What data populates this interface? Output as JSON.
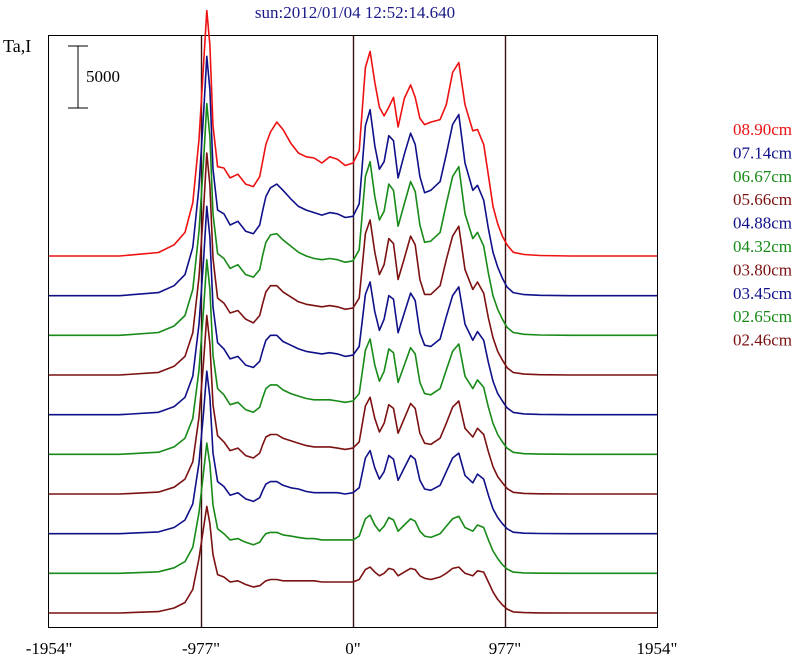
{
  "title": "sun:2012/01/04 12:52:14.640",
  "ylabel": "Ta,I",
  "scale_bar_label": "5000",
  "chart_data": {
    "type": "line",
    "title": "sun:2012/01/04 12:52:14.640",
    "ylabel": "Ta,I",
    "xlabel": "",
    "xlim": [
      -1954,
      1954
    ],
    "x_ticks": [
      -1954,
      -977,
      0,
      977,
      1954
    ],
    "x_tick_labels": [
      "-1954\"",
      "-977\"",
      "0\"",
      "977\"",
      "1954\""
    ],
    "vertical_lines": [
      -977,
      0,
      977
    ],
    "scale_bar_value": 5000,
    "grid": false,
    "legend_position": "right",
    "x": [
      -1954,
      -1500,
      -1250,
      -1150,
      -1080,
      -1030,
      -990,
      -960,
      -940,
      -920,
      -900,
      -870,
      -830,
      -790,
      -740,
      -690,
      -640,
      -600,
      -580,
      -560,
      -530,
      -490,
      -450,
      -400,
      -350,
      -300,
      -250,
      -200,
      -150,
      -100,
      -50,
      0,
      40,
      80,
      110,
      140,
      170,
      200,
      230,
      260,
      290,
      330,
      370,
      400,
      430,
      460,
      500,
      560,
      600,
      640,
      680,
      720,
      770,
      800,
      840,
      870,
      900,
      930,
      960,
      990,
      1030,
      1100,
      1200,
      1400,
      1954
    ],
    "series": [
      {
        "name": "08.90cm",
        "color": "#ee1111",
        "values": [
          0,
          0,
          280,
          900,
          1900,
          4300,
          9400,
          15500,
          19800,
          17000,
          10500,
          7200,
          7100,
          6300,
          6600,
          5800,
          5600,
          6400,
          7700,
          9000,
          10000,
          10800,
          10200,
          9100,
          8300,
          8000,
          7900,
          7500,
          8000,
          7800,
          7300,
          7500,
          8500,
          15200,
          16500,
          14000,
          12000,
          11300,
          12000,
          12800,
          10400,
          12700,
          13800,
          12800,
          11100,
          10600,
          10800,
          11000,
          12200,
          14800,
          15600,
          12200,
          10100,
          10200,
          9000,
          6500,
          4000,
          2600,
          1600,
          900,
          300,
          120,
          40,
          0,
          0
        ]
      },
      {
        "name": "07.14cm",
        "color": "#101089",
        "values": [
          0,
          0,
          250,
          800,
          1700,
          3900,
          8800,
          14700,
          19300,
          16600,
          10200,
          6900,
          6600,
          5700,
          6000,
          5200,
          5000,
          5700,
          6900,
          8000,
          8700,
          9000,
          8500,
          7800,
          7200,
          6900,
          6700,
          6500,
          6700,
          6600,
          6300,
          6400,
          7400,
          13700,
          15000,
          12100,
          10200,
          10800,
          12900,
          12500,
          9500,
          11400,
          13100,
          12200,
          9600,
          8300,
          8500,
          9200,
          11400,
          13800,
          14600,
          10700,
          8500,
          8900,
          7700,
          5400,
          3500,
          2300,
          1400,
          700,
          250,
          90,
          30,
          0,
          0
        ]
      },
      {
        "name": "06.67cm",
        "color": "#178a17",
        "values": [
          0,
          0,
          230,
          750,
          1600,
          3700,
          8400,
          14100,
          18700,
          16000,
          9800,
          6600,
          6200,
          5400,
          5700,
          4900,
          4700,
          5300,
          6500,
          7500,
          8100,
          8200,
          7700,
          7200,
          6700,
          6400,
          6200,
          6100,
          6200,
          6100,
          5900,
          6000,
          6900,
          12800,
          14000,
          11200,
          9300,
          10000,
          12200,
          11700,
          8800,
          10600,
          12400,
          11600,
          8900,
          7500,
          7600,
          8300,
          10600,
          12800,
          13600,
          9800,
          7800,
          8300,
          7200,
          5000,
          3200,
          2100,
          1300,
          650,
          230,
          80,
          30,
          0,
          0
        ]
      },
      {
        "name": "05.66cm",
        "color": "#7c1111",
        "values": [
          0,
          0,
          210,
          700,
          1500,
          3400,
          7900,
          13400,
          17900,
          15300,
          9400,
          6200,
          5800,
          5000,
          5200,
          4500,
          4200,
          4800,
          5800,
          6700,
          7200,
          7200,
          6700,
          6300,
          5900,
          5700,
          5600,
          5500,
          5600,
          5500,
          5300,
          5400,
          6200,
          11400,
          12500,
          9900,
          8100,
          8900,
          11000,
          10600,
          7700,
          9400,
          11200,
          10500,
          7700,
          6500,
          6500,
          7200,
          9300,
          11200,
          12000,
          8500,
          6900,
          7500,
          6600,
          4600,
          3000,
          1900,
          1200,
          600,
          200,
          70,
          25,
          0,
          0
        ]
      },
      {
        "name": "04.88cm",
        "color": "#101089",
        "values": [
          0,
          0,
          190,
          650,
          1400,
          3100,
          7300,
          12500,
          16800,
          14300,
          8700,
          5800,
          5300,
          4500,
          4700,
          4000,
          3800,
          4300,
          5200,
          6000,
          6400,
          6400,
          5900,
          5600,
          5300,
          5100,
          5000,
          4900,
          5000,
          4900,
          4700,
          4800,
          5500,
          9700,
          10700,
          8300,
          6800,
          7700,
          9600,
          9300,
          6600,
          8200,
          9800,
          9200,
          6600,
          5600,
          5500,
          6100,
          7900,
          9600,
          10300,
          7300,
          6000,
          6700,
          6000,
          4200,
          2700,
          1700,
          1100,
          550,
          180,
          60,
          20,
          0,
          0
        ]
      },
      {
        "name": "04.32cm",
        "color": "#178a17",
        "values": [
          0,
          0,
          170,
          600,
          1300,
          2900,
          6800,
          11700,
          15700,
          13300,
          8000,
          5300,
          4800,
          4000,
          4200,
          3600,
          3400,
          3800,
          4600,
          5300,
          5600,
          5600,
          5200,
          4900,
          4700,
          4500,
          4400,
          4400,
          4400,
          4300,
          4200,
          4300,
          4900,
          8400,
          9300,
          7200,
          5900,
          6700,
          8500,
          8200,
          5800,
          7200,
          8600,
          8100,
          5800,
          4900,
          4800,
          5300,
          6800,
          8300,
          8900,
          6300,
          5300,
          6000,
          5400,
          3800,
          2500,
          1600,
          1000,
          500,
          160,
          50,
          20,
          0,
          0
        ]
      },
      {
        "name": "03.80cm",
        "color": "#7c1111",
        "values": [
          0,
          0,
          150,
          550,
          1200,
          2600,
          6200,
          10700,
          14400,
          12100,
          7200,
          4700,
          4200,
          3500,
          3700,
          3100,
          2900,
          3300,
          4000,
          4600,
          4800,
          4800,
          4500,
          4300,
          4100,
          3900,
          3800,
          3800,
          3800,
          3700,
          3600,
          3700,
          4200,
          7100,
          7800,
          6100,
          5000,
          5700,
          7200,
          6900,
          4900,
          6100,
          7300,
          6900,
          4900,
          4100,
          4000,
          4500,
          5700,
          7000,
          7500,
          5300,
          4600,
          5300,
          4800,
          3400,
          2200,
          1400,
          900,
          450,
          140,
          45,
          15,
          0,
          0
        ]
      },
      {
        "name": "03.45cm",
        "color": "#101089",
        "values": [
          0,
          0,
          140,
          500,
          1100,
          2400,
          5700,
          9800,
          13100,
          11000,
          6500,
          4200,
          3800,
          3100,
          3300,
          2800,
          2600,
          2900,
          3500,
          4000,
          4200,
          4200,
          3900,
          3700,
          3600,
          3400,
          3300,
          3300,
          3300,
          3300,
          3200,
          3300,
          3700,
          6100,
          6700,
          5300,
          4400,
          5000,
          6300,
          6000,
          4300,
          5300,
          6300,
          6000,
          4300,
          3600,
          3500,
          3900,
          5000,
          6100,
          6500,
          4700,
          4100,
          4800,
          4400,
          3100,
          2000,
          1300,
          800,
          400,
          120,
          40,
          15,
          0,
          0
        ]
      },
      {
        "name": "02.65cm",
        "color": "#178a17",
        "values": [
          0,
          0,
          120,
          450,
          950,
          2100,
          4900,
          8200,
          10500,
          8800,
          5500,
          3600,
          3200,
          2700,
          2800,
          2500,
          2300,
          2500,
          2900,
          3200,
          3300,
          3300,
          3100,
          3000,
          2900,
          2800,
          2800,
          2700,
          2700,
          2700,
          2700,
          2700,
          3000,
          4400,
          4700,
          3900,
          3400,
          3800,
          4500,
          4300,
          3400,
          3900,
          4400,
          4200,
          3400,
          3000,
          2900,
          3200,
          3800,
          4400,
          4600,
          3700,
          3400,
          3900,
          3700,
          2700,
          1800,
          1200,
          700,
          350,
          100,
          35,
          10,
          0,
          0
        ]
      },
      {
        "name": "02.46cm",
        "color": "#7c1111",
        "values": [
          0,
          0,
          110,
          400,
          850,
          1900,
          4400,
          6900,
          8600,
          7200,
          4700,
          3100,
          2900,
          2500,
          2600,
          2300,
          2100,
          2200,
          2400,
          2600,
          2700,
          2700,
          2600,
          2600,
          2600,
          2600,
          2600,
          2500,
          2500,
          2500,
          2500,
          2500,
          2700,
          3500,
          3700,
          3300,
          3000,
          3200,
          3600,
          3500,
          3000,
          3300,
          3600,
          3500,
          3000,
          2800,
          2700,
          2900,
          3200,
          3600,
          3700,
          3200,
          3000,
          3400,
          3300,
          2500,
          1700,
          1100,
          650,
          320,
          90,
          30,
          10,
          0,
          0
        ]
      }
    ]
  }
}
